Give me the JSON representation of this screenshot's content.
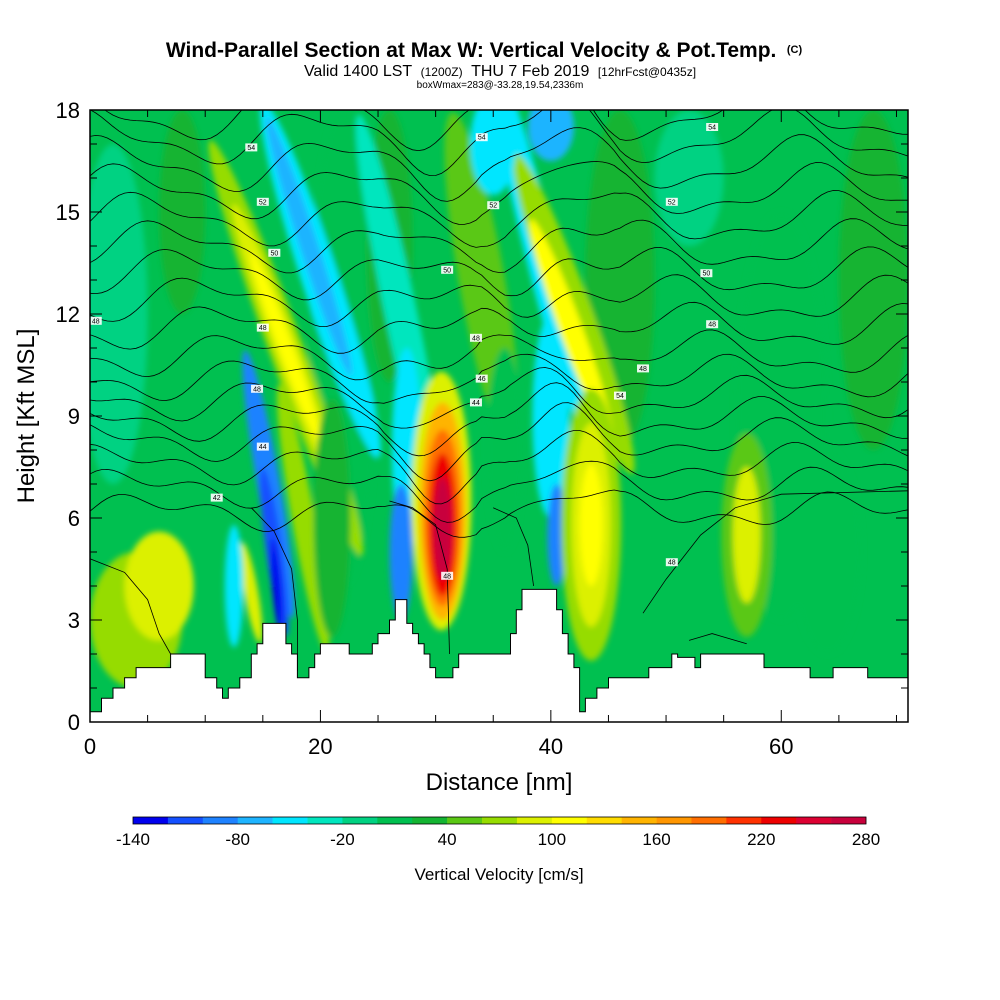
{
  "title": {
    "main": "Wind-Parallel Section at Max W: Vertical Velocity & Pot.Temp.",
    "copyright": "(C)",
    "valid_prefix": "Valid 1400 LST",
    "valid_utc": "(1200Z)",
    "valid_date": "THU 7 Feb 2019",
    "forecast": "[12hrFcst@0435z]",
    "boxwmax": "boxWmax=283@-33.28,19.54,2336m"
  },
  "chart_data": {
    "type": "heatmap",
    "xlabel": "Distance [nm]",
    "ylabel": "Height [Kft MSL]",
    "xlim": [
      0,
      71
    ],
    "ylim": [
      0,
      18
    ],
    "x_ticks": [
      0,
      20,
      40,
      60
    ],
    "y_ticks": [
      0,
      3,
      6,
      9,
      12,
      15,
      18
    ],
    "colorbar": {
      "title": "Vertical Velocity [cm/s]",
      "min": -140,
      "max": 280,
      "step": 20,
      "tick_labels": [
        -140,
        -80,
        -20,
        40,
        100,
        160,
        220,
        280
      ],
      "colors": [
        "#0000ee",
        "#1450ff",
        "#1e82ff",
        "#1eb4ff",
        "#00e6ff",
        "#00e6be",
        "#00d282",
        "#00c050",
        "#14b432",
        "#5ac814",
        "#96dc00",
        "#dcf000",
        "#ffff00",
        "#ffdc00",
        "#ffb400",
        "#ff9600",
        "#ff6e00",
        "#ff3200",
        "#ee0000",
        "#dc0032",
        "#c8003c"
      ]
    },
    "terrain": [
      [
        0,
        0.3
      ],
      [
        1,
        0.7
      ],
      [
        2,
        1.0
      ],
      [
        3,
        1.3
      ],
      [
        4,
        1.6
      ],
      [
        6,
        1.6
      ],
      [
        7,
        2.0
      ],
      [
        9,
        2.0
      ],
      [
        10,
        1.3
      ],
      [
        11,
        1.0
      ],
      [
        11.5,
        0.7
      ],
      [
        12,
        1.0
      ],
      [
        13,
        1.3
      ],
      [
        14,
        2.0
      ],
      [
        14.5,
        2.3
      ],
      [
        15,
        2.9
      ],
      [
        16,
        2.9
      ],
      [
        17,
        2.3
      ],
      [
        17.5,
        2.0
      ],
      [
        18,
        1.3
      ],
      [
        19,
        1.6
      ],
      [
        19.5,
        2.0
      ],
      [
        20,
        2.3
      ],
      [
        22,
        2.3
      ],
      [
        22.5,
        2.0
      ],
      [
        24,
        2.0
      ],
      [
        24.5,
        2.3
      ],
      [
        25,
        2.6
      ],
      [
        26,
        3.0
      ],
      [
        26.5,
        3.6
      ],
      [
        27,
        3.6
      ],
      [
        27.5,
        2.9
      ],
      [
        28,
        2.6
      ],
      [
        28.5,
        2.3
      ],
      [
        29,
        2.0
      ],
      [
        29.5,
        1.6
      ],
      [
        30,
        1.3
      ],
      [
        31,
        1.3
      ],
      [
        31.5,
        1.6
      ],
      [
        32,
        2.0
      ],
      [
        33,
        2.0
      ],
      [
        36,
        2.0
      ],
      [
        36.5,
        2.6
      ],
      [
        37,
        3.3
      ],
      [
        37.5,
        3.9
      ],
      [
        40,
        3.9
      ],
      [
        40.5,
        3.3
      ],
      [
        41,
        2.6
      ],
      [
        41.5,
        2.0
      ],
      [
        42,
        1.6
      ],
      [
        42.5,
        0.3
      ],
      [
        43,
        0.7
      ],
      [
        44,
        1.0
      ],
      [
        45,
        1.3
      ],
      [
        48,
        1.3
      ],
      [
        48.5,
        1.6
      ],
      [
        50,
        1.6
      ],
      [
        50.5,
        2.0
      ],
      [
        51,
        1.9
      ],
      [
        52,
        1.9
      ],
      [
        52.5,
        1.6
      ],
      [
        53,
        2.0
      ],
      [
        58,
        2.0
      ],
      [
        58.5,
        1.6
      ],
      [
        62,
        1.6
      ],
      [
        62.5,
        1.3
      ],
      [
        64,
        1.3
      ],
      [
        64.5,
        1.6
      ],
      [
        67,
        1.6
      ],
      [
        67.5,
        1.3
      ],
      [
        71,
        1.3
      ]
    ],
    "contour_labels": [
      {
        "text": "54",
        "x": 14,
        "y": 16.9
      },
      {
        "text": "52",
        "x": 15,
        "y": 15.3
      },
      {
        "text": "50",
        "x": 16,
        "y": 13.8
      },
      {
        "text": "48",
        "x": 15,
        "y": 11.6
      },
      {
        "text": "48",
        "x": 14.5,
        "y": 9.8
      },
      {
        "text": "44",
        "x": 15,
        "y": 8.1
      },
      {
        "text": "42",
        "x": 11,
        "y": 6.6
      },
      {
        "text": "48",
        "x": 0.5,
        "y": 11.8
      },
      {
        "text": "54",
        "x": 34,
        "y": 17.2
      },
      {
        "text": "52",
        "x": 35,
        "y": 15.2
      },
      {
        "text": "50",
        "x": 31,
        "y": 13.3
      },
      {
        "text": "48",
        "x": 33.5,
        "y": 11.3
      },
      {
        "text": "46",
        "x": 34,
        "y": 10.1
      },
      {
        "text": "44",
        "x": 33.5,
        "y": 9.4
      },
      {
        "text": "48",
        "x": 31,
        "y": 4.3
      },
      {
        "text": "54",
        "x": 54,
        "y": 17.5
      },
      {
        "text": "52",
        "x": 50.5,
        "y": 15.3
      },
      {
        "text": "50",
        "x": 53.5,
        "y": 13.2
      },
      {
        "text": "48",
        "x": 54,
        "y": 11.7
      },
      {
        "text": "48",
        "x": 48,
        "y": 10.4
      },
      {
        "text": "54",
        "x": 46,
        "y": 9.6
      },
      {
        "text": "48",
        "x": 50.5,
        "y": 4.7
      }
    ]
  }
}
